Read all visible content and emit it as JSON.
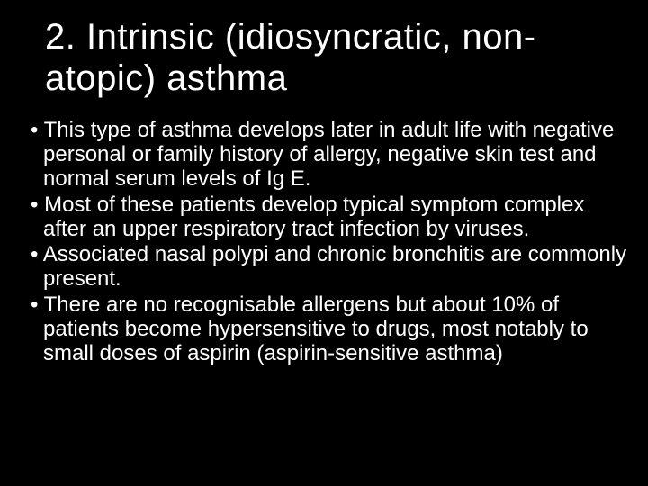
{
  "slide": {
    "title": "2. Intrinsic (idiosyncratic, non-atopic) asthma",
    "bullets": [
      "This type of asthma develops later in adult life with negative personal or family history of allergy, negative skin test and normal serum levels of Ig E.",
      "Most of these patients develop typical symptom complex after an upper respiratory tract infection by viruses.",
      "Associated nasal polypi and chronic bronchitis are commonly present.",
      "There are no recognisable allergens but about 10% of patients become hypersensitive to drugs, most notably to small doses of aspirin (aspirin-sensitive asthma)"
    ],
    "colors": {
      "background": "#000000",
      "text": "#ffffff"
    },
    "typography": {
      "title_fontsize": 40,
      "body_fontsize": 24,
      "title_weight": 400,
      "body_weight": 400
    }
  }
}
